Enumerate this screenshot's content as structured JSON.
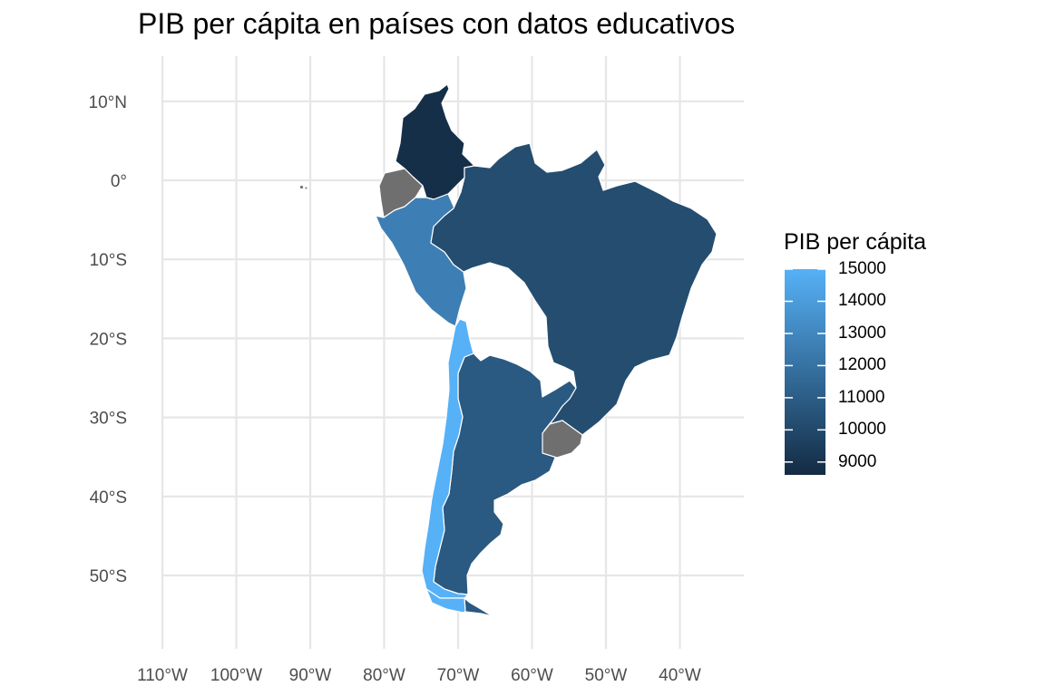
{
  "title": "PIB per cápita en países con datos educativos",
  "legend": {
    "title": "PIB per cápita",
    "range": [
      8600,
      15000
    ],
    "colors": {
      "low": "#132b43",
      "high": "#56b1f7",
      "na": "#6f6f6f"
    },
    "ticks": [
      {
        "value": 15000,
        "label": "15000"
      },
      {
        "value": 14000,
        "label": "14000"
      },
      {
        "value": 13000,
        "label": "13000"
      },
      {
        "value": 12000,
        "label": "12000"
      },
      {
        "value": 11000,
        "label": "11000"
      },
      {
        "value": 10000,
        "label": "10000"
      },
      {
        "value": 9000,
        "label": "9000"
      }
    ]
  },
  "axes": {
    "x_ticks": [
      {
        "value": -110,
        "label": "110°W"
      },
      {
        "value": -100,
        "label": "100°W"
      },
      {
        "value": -90,
        "label": "90°W"
      },
      {
        "value": -80,
        "label": "80°W"
      },
      {
        "value": -70,
        "label": "70°W"
      },
      {
        "value": -60,
        "label": "60°W"
      },
      {
        "value": -50,
        "label": "50°W"
      },
      {
        "value": -40,
        "label": "40°W"
      }
    ],
    "y_ticks": [
      {
        "value": 10,
        "label": "10°N"
      },
      {
        "value": 0,
        "label": "0°"
      },
      {
        "value": -10,
        "label": "10°S"
      },
      {
        "value": -20,
        "label": "20°S"
      },
      {
        "value": -30,
        "label": "30°S"
      },
      {
        "value": -40,
        "label": "40°S"
      },
      {
        "value": -50,
        "label": "50°S"
      }
    ],
    "x_range": [
      -112,
      -33
    ],
    "y_range": [
      -58,
      16
    ],
    "grid": true
  },
  "chart_data": {
    "type": "choropleth",
    "value_name": "PIB per cápita",
    "regions": [
      {
        "country": "Colombia",
        "gdp_per_capita": 8800
      },
      {
        "country": "Ecuador",
        "gdp_per_capita": null
      },
      {
        "country": "Perú",
        "gdp_per_capita": 12600
      },
      {
        "country": "Brasil",
        "gdp_per_capita": 10200
      },
      {
        "country": "Argentina",
        "gdp_per_capita": 10800
      },
      {
        "country": "Chile",
        "gdp_per_capita": 15000
      },
      {
        "country": "Uruguay",
        "gdp_per_capita": null
      }
    ]
  }
}
